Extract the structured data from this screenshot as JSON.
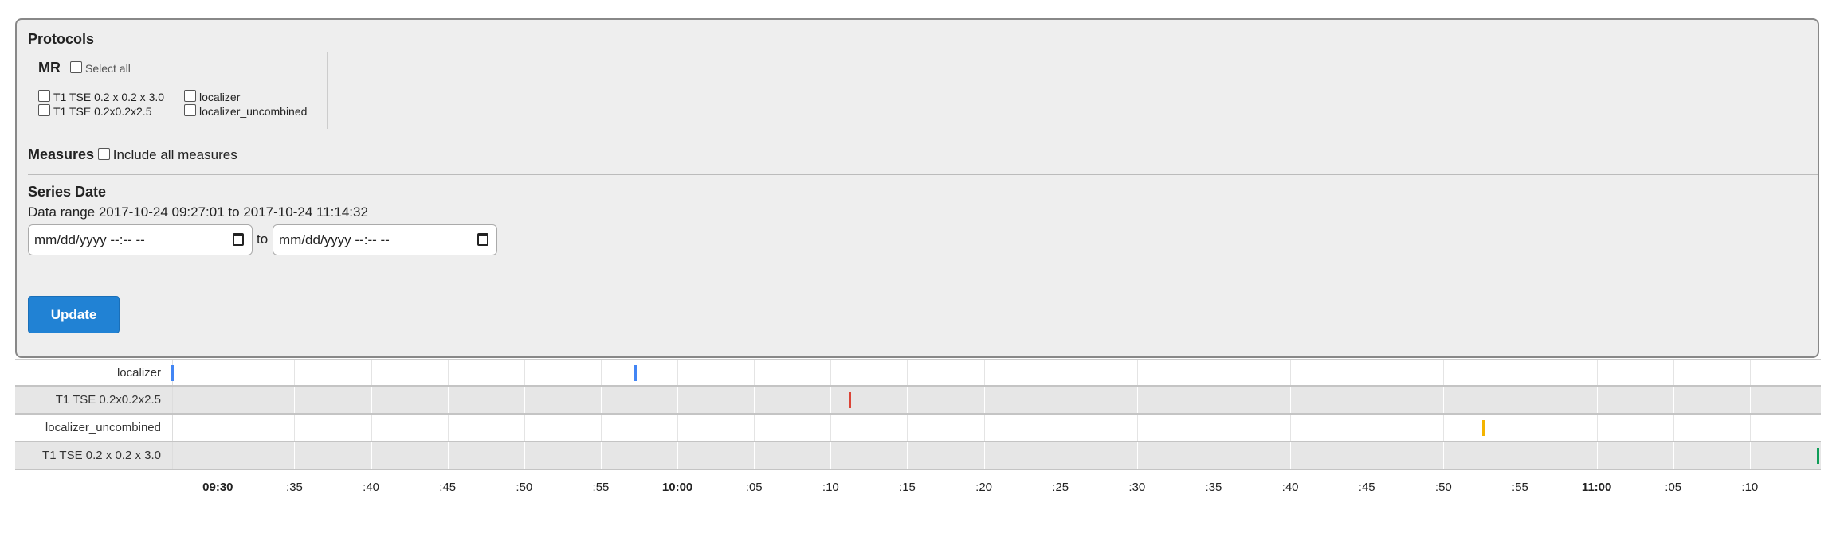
{
  "protocols": {
    "title": "Protocols",
    "group": "MR",
    "select_all": "Select all",
    "items": [
      "T1 TSE 0.2 x 0.2 x 3.0",
      "localizer",
      "T1 TSE 0.2x0.2x2.5",
      "localizer_uncombined"
    ]
  },
  "measures": {
    "title": "Measures",
    "include_all": "Include all measures"
  },
  "series_date": {
    "title": "Series Date",
    "range_text": "Data range 2017-10-24 09:27:01 to 2017-10-24 11:14:32",
    "from_placeholder": "mm/dd/yyyy --:-- --",
    "to_label": "to",
    "to_placeholder": "mm/dd/yyyy --:-- --"
  },
  "update_label": "Update",
  "chart_data": {
    "type": "timeline",
    "x_range": [
      "09:27:01",
      "11:14:32"
    ],
    "tick_labels": [
      "09:30",
      ":35",
      ":40",
      ":45",
      ":50",
      ":55",
      "10:00",
      ":05",
      ":10",
      ":15",
      ":20",
      ":25",
      ":30",
      ":35",
      ":40",
      ":45",
      ":50",
      ":55",
      "11:00",
      ":05",
      ":10"
    ],
    "rows": [
      {
        "label": "localizer",
        "color": "#4285f4",
        "times": [
          "09:27:01",
          "09:57:15"
        ]
      },
      {
        "label": "T1 TSE 0.2x0.2x2.5",
        "color": "#db4437",
        "times": [
          "10:11:13"
        ]
      },
      {
        "label": "localizer_uncombined",
        "color": "#f4b400",
        "times": [
          "10:52:36"
        ]
      },
      {
        "label": "T1 TSE 0.2 x 0.2 x 3.0",
        "color": "#0f9d58",
        "times": [
          "11:14:32"
        ]
      }
    ]
  }
}
